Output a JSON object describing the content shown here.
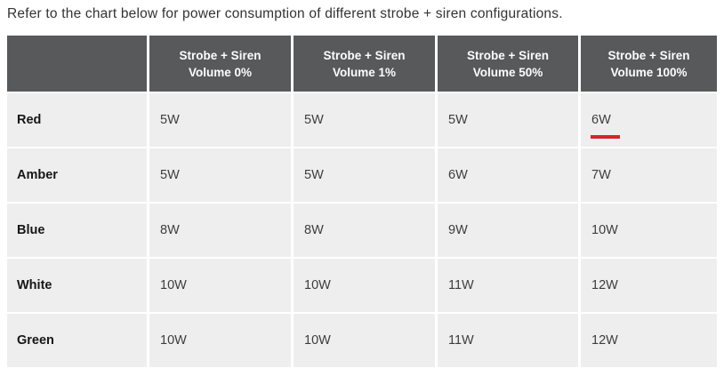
{
  "title": "Refer to the chart below for power consumption of different strobe + siren configurations.",
  "colors": {
    "header_background": "#58595b",
    "cell_background": "#eeeeee",
    "header_text": "#fdfdfd",
    "body_text": "#3d3d3d",
    "highlight_red": "#d9232a"
  },
  "table": {
    "columns": [
      {
        "line1": "Strobe + Siren",
        "line2": "Volume 0%"
      },
      {
        "line1": "Strobe + Siren",
        "line2": "Volume 1%"
      },
      {
        "line1": "Strobe + Siren",
        "line2": "Volume 50%"
      },
      {
        "line1": "Strobe + Siren",
        "line2": "Volume 100%"
      }
    ],
    "rows": [
      {
        "label": "Red",
        "values": [
          "5W",
          "5W",
          "5W",
          "6W"
        ]
      },
      {
        "label": "Amber",
        "values": [
          "5W",
          "5W",
          "6W",
          "7W"
        ]
      },
      {
        "label": "Blue",
        "values": [
          "8W",
          "8W",
          "9W",
          "10W"
        ]
      },
      {
        "label": "White",
        "values": [
          "10W",
          "10W",
          "11W",
          "12W"
        ]
      },
      {
        "label": "Green",
        "values": [
          "10W",
          "10W",
          "11W",
          "12W"
        ]
      }
    ],
    "highlight": {
      "row": "Red",
      "column": "Strobe + Siren Volume 100%",
      "value": "6W",
      "marker": "red-underline"
    }
  },
  "chart_data": {
    "type": "table",
    "title": "Power consumption of different strobe + siren configurations",
    "unit": "W",
    "categories": [
      "Red",
      "Amber",
      "Blue",
      "White",
      "Green"
    ],
    "series": [
      {
        "name": "Strobe + Siren Volume 0%",
        "values": [
          5,
          5,
          8,
          10,
          10
        ]
      },
      {
        "name": "Strobe + Siren Volume 1%",
        "values": [
          5,
          5,
          8,
          10,
          10
        ]
      },
      {
        "name": "Strobe + Siren Volume 50%",
        "values": [
          5,
          6,
          9,
          11,
          11
        ]
      },
      {
        "name": "Strobe + Siren Volume 100%",
        "values": [
          6,
          7,
          10,
          12,
          12
        ]
      }
    ],
    "annotations": [
      {
        "cell": [
          "Red",
          "Strobe + Siren Volume 100%"
        ],
        "note": "red underline highlight under 6W"
      }
    ]
  }
}
